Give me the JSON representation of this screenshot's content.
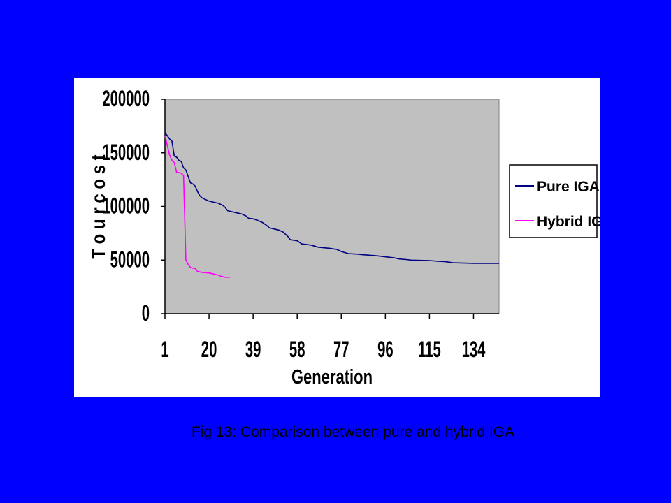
{
  "caption": "Fig 13: Comparison between pure and hybrid IGA",
  "colors": {
    "slide_background": "#0000ff",
    "plot_area": "#c0c0c0",
    "chart_area": "#ffffff",
    "pure_iga": "#000080",
    "hybrid_iga": "#ff00ff"
  },
  "chart_data": {
    "type": "line",
    "title": "",
    "xlabel": "Generation",
    "ylabel": "T o u r  c o s t",
    "ylim": [
      0,
      200000
    ],
    "xlim": [
      1,
      145
    ],
    "yticks": [
      "0",
      "50000",
      "100000",
      "150000",
      "200000"
    ],
    "xticks": [
      "1",
      "20",
      "39",
      "58",
      "77",
      "96",
      "115",
      "134"
    ],
    "grid": false,
    "legend_position": "right",
    "series": [
      {
        "name": "Pure IGA",
        "color": "#000080",
        "points": [
          [
            1,
            169000
          ],
          [
            2,
            166000
          ],
          [
            3,
            163000
          ],
          [
            4,
            161000
          ],
          [
            5,
            147000
          ],
          [
            6,
            146000
          ],
          [
            7,
            143000
          ],
          [
            8,
            142000
          ],
          [
            9,
            136000
          ],
          [
            10,
            134000
          ],
          [
            11,
            128000
          ],
          [
            12,
            122000
          ],
          [
            13,
            121000
          ],
          [
            14,
            119000
          ],
          [
            15,
            114000
          ],
          [
            16,
            110000
          ],
          [
            17,
            108000
          ],
          [
            18,
            107000
          ],
          [
            19,
            106000
          ],
          [
            20,
            105000
          ],
          [
            22,
            104000
          ],
          [
            24,
            103000
          ],
          [
            26,
            101000
          ],
          [
            27,
            99000
          ],
          [
            28,
            96000
          ],
          [
            30,
            95000
          ],
          [
            32,
            94000
          ],
          [
            34,
            93000
          ],
          [
            36,
            91000
          ],
          [
            37,
            89000
          ],
          [
            39,
            88500
          ],
          [
            41,
            87000
          ],
          [
            43,
            85000
          ],
          [
            45,
            82000
          ],
          [
            46,
            80000
          ],
          [
            48,
            79000
          ],
          [
            50,
            78000
          ],
          [
            52,
            76000
          ],
          [
            54,
            72000
          ],
          [
            55,
            69000
          ],
          [
            58,
            68000
          ],
          [
            60,
            65000
          ],
          [
            64,
            64000
          ],
          [
            67,
            62000
          ],
          [
            72,
            61000
          ],
          [
            75,
            60000
          ],
          [
            77,
            58000
          ],
          [
            80,
            56000
          ],
          [
            84,
            55500
          ],
          [
            86,
            55000
          ],
          [
            92,
            54000
          ],
          [
            96,
            53000
          ],
          [
            100,
            52000
          ],
          [
            102,
            51000
          ],
          [
            105,
            50500
          ],
          [
            107,
            50000
          ],
          [
            115,
            49500
          ],
          [
            118,
            49000
          ],
          [
            122,
            48500
          ],
          [
            125,
            47500
          ],
          [
            134,
            47000
          ],
          [
            145,
            47000
          ]
        ]
      },
      {
        "name": "Hybrid IGA",
        "color": "#ff00ff",
        "points": [
          [
            1,
            166000
          ],
          [
            2,
            157000
          ],
          [
            3,
            148000
          ],
          [
            4,
            143000
          ],
          [
            5,
            141000
          ],
          [
            6,
            132000
          ],
          [
            8,
            131000
          ],
          [
            9,
            129000
          ],
          [
            10,
            50000
          ],
          [
            11,
            46000
          ],
          [
            12,
            43000
          ],
          [
            14,
            42000
          ],
          [
            15,
            39500
          ],
          [
            17,
            38500
          ],
          [
            20,
            38000
          ],
          [
            22,
            37000
          ],
          [
            24,
            36000
          ],
          [
            25,
            35000
          ],
          [
            27,
            34000
          ],
          [
            29,
            34000
          ]
        ]
      }
    ]
  }
}
